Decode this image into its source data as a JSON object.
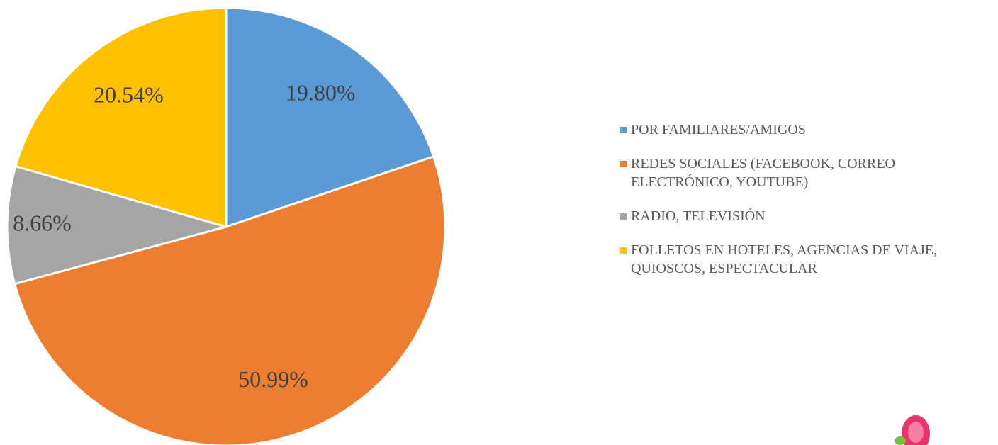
{
  "chart_data": {
    "type": "pie",
    "categories": [
      "POR FAMILIARES/AMIGOS",
      "REDES SOCIALES (FACEBOOK, CORREO ELECTRÓNICO, YOUTUBE)",
      "RADIO, TELEVISIÓN",
      "FOLLETOS EN HOTELES, AGENCIAS DE VIAJE, QUIOSCOS, ESPECTACULAR"
    ],
    "values": [
      19.8,
      50.99,
      8.66,
      20.54
    ],
    "value_labels": [
      "19.80%",
      "50.99%",
      "8.66%",
      "20.54%"
    ],
    "colors": [
      "#5b9bd5",
      "#ed7d31",
      "#a5a5a5",
      "#ffc000"
    ],
    "legend": "right"
  }
}
